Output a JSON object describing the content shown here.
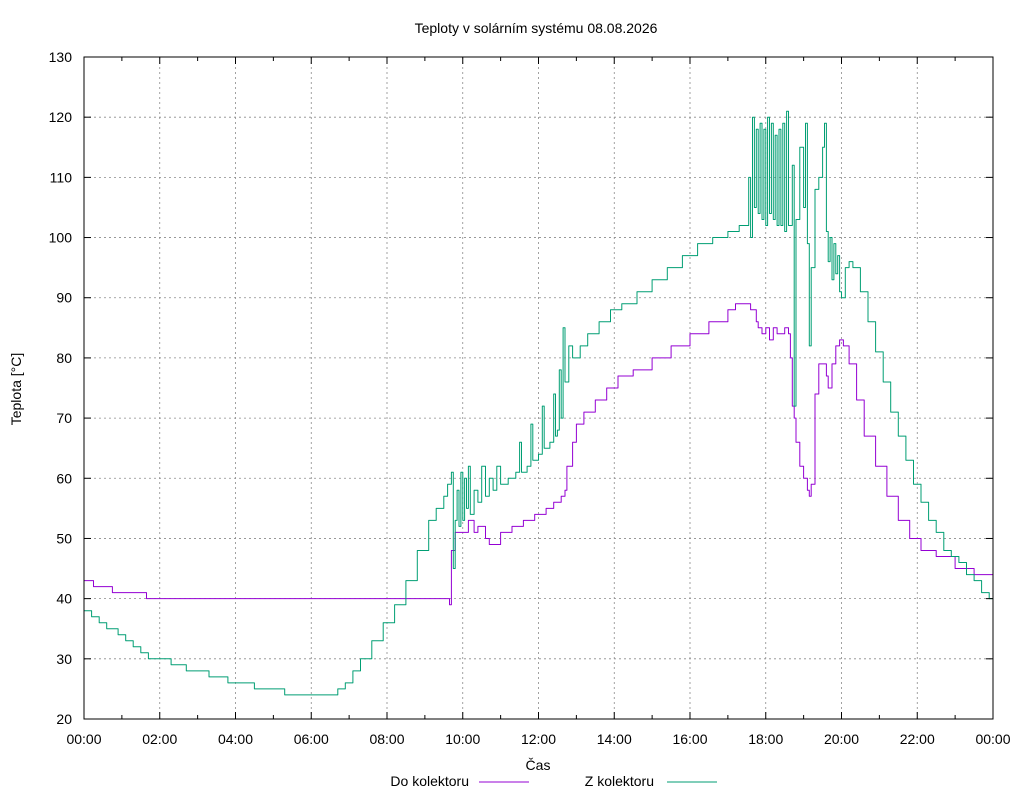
{
  "chart_data": {
    "type": "line",
    "title": "Teploty v solárním systému 08.08.2026",
    "xlabel": "Čas",
    "ylabel": "Teplota [°C]",
    "xlim": [
      0,
      24
    ],
    "ylim": [
      20,
      130
    ],
    "grid": true,
    "legend_position": "bottom-center",
    "x_ticks": [
      {
        "value": 0,
        "label": "00:00"
      },
      {
        "value": 2,
        "label": "02:00"
      },
      {
        "value": 4,
        "label": "04:00"
      },
      {
        "value": 6,
        "label": "06:00"
      },
      {
        "value": 8,
        "label": "08:00"
      },
      {
        "value": 10,
        "label": "10:00"
      },
      {
        "value": 12,
        "label": "12:00"
      },
      {
        "value": 14,
        "label": "14:00"
      },
      {
        "value": 16,
        "label": "16:00"
      },
      {
        "value": 18,
        "label": "18:00"
      },
      {
        "value": 20,
        "label": "20:00"
      },
      {
        "value": 22,
        "label": "22:00"
      },
      {
        "value": 24,
        "label": "00:00"
      }
    ],
    "y_ticks": [
      20,
      30,
      40,
      50,
      60,
      70,
      80,
      90,
      100,
      110,
      120,
      130
    ],
    "series": [
      {
        "name": "Do kolektoru",
        "color": "#9400d3",
        "points": [
          [
            0,
            43
          ],
          [
            0.2,
            43
          ],
          [
            0.25,
            42
          ],
          [
            0.7,
            42
          ],
          [
            0.75,
            41
          ],
          [
            1.6,
            41
          ],
          [
            1.65,
            40
          ],
          [
            9.6,
            40
          ],
          [
            9.65,
            39
          ],
          [
            9.7,
            48
          ],
          [
            9.8,
            51
          ],
          [
            10,
            51
          ],
          [
            10.15,
            53
          ],
          [
            10.3,
            51
          ],
          [
            10.4,
            52
          ],
          [
            10.6,
            50
          ],
          [
            10.7,
            49
          ],
          [
            10.9,
            49
          ],
          [
            11,
            51
          ],
          [
            11.3,
            52
          ],
          [
            11.6,
            53
          ],
          [
            11.9,
            54
          ],
          [
            12.2,
            55
          ],
          [
            12.4,
            56
          ],
          [
            12.6,
            57
          ],
          [
            12.7,
            58
          ],
          [
            12.75,
            62
          ],
          [
            12.9,
            66
          ],
          [
            13,
            69
          ],
          [
            13.2,
            71
          ],
          [
            13.5,
            73
          ],
          [
            13.8,
            75
          ],
          [
            14.1,
            77
          ],
          [
            14.5,
            78
          ],
          [
            15,
            80
          ],
          [
            15.5,
            82
          ],
          [
            16,
            84
          ],
          [
            16.5,
            86
          ],
          [
            17,
            88
          ],
          [
            17.2,
            89
          ],
          [
            17.4,
            89
          ],
          [
            17.6,
            88
          ],
          [
            17.75,
            86
          ],
          [
            17.8,
            85
          ],
          [
            17.9,
            84
          ],
          [
            18,
            85
          ],
          [
            18.1,
            83
          ],
          [
            18.2,
            85
          ],
          [
            18.3,
            84
          ],
          [
            18.4,
            84
          ],
          [
            18.5,
            85
          ],
          [
            18.6,
            84
          ],
          [
            18.65,
            80
          ],
          [
            18.7,
            72
          ],
          [
            18.75,
            70
          ],
          [
            18.8,
            66
          ],
          [
            18.9,
            62
          ],
          [
            19,
            60
          ],
          [
            19.1,
            58
          ],
          [
            19.15,
            57
          ],
          [
            19.2,
            59
          ],
          [
            19.3,
            74
          ],
          [
            19.4,
            79
          ],
          [
            19.5,
            79
          ],
          [
            19.6,
            77
          ],
          [
            19.65,
            75
          ],
          [
            19.7,
            75
          ],
          [
            19.75,
            79
          ],
          [
            19.85,
            82
          ],
          [
            19.95,
            83
          ],
          [
            20.05,
            82
          ],
          [
            20.2,
            79
          ],
          [
            20.4,
            73
          ],
          [
            20.6,
            67
          ],
          [
            20.9,
            62
          ],
          [
            21.2,
            57
          ],
          [
            21.5,
            53
          ],
          [
            21.8,
            50
          ],
          [
            22.1,
            48
          ],
          [
            22.5,
            47
          ],
          [
            23,
            45
          ],
          [
            23.5,
            44
          ],
          [
            24,
            42
          ]
        ]
      },
      {
        "name": "Z kolektoru",
        "color": "#009e73",
        "points": [
          [
            0,
            38
          ],
          [
            0.2,
            37
          ],
          [
            0.4,
            36
          ],
          [
            0.6,
            35
          ],
          [
            0.9,
            34
          ],
          [
            1.1,
            33
          ],
          [
            1.3,
            32
          ],
          [
            1.5,
            31
          ],
          [
            1.7,
            30
          ],
          [
            2.2,
            30
          ],
          [
            2.3,
            29
          ],
          [
            2.6,
            29
          ],
          [
            2.7,
            28
          ],
          [
            3.2,
            28
          ],
          [
            3.3,
            27
          ],
          [
            3.7,
            27
          ],
          [
            3.8,
            26
          ],
          [
            4.4,
            26
          ],
          [
            4.5,
            25
          ],
          [
            5.2,
            25
          ],
          [
            5.3,
            24
          ],
          [
            6.6,
            24
          ],
          [
            6.7,
            25
          ],
          [
            6.9,
            26
          ],
          [
            7.1,
            28
          ],
          [
            7.3,
            30
          ],
          [
            7.6,
            33
          ],
          [
            7.9,
            36
          ],
          [
            8.2,
            39
          ],
          [
            8.5,
            43
          ],
          [
            8.8,
            48
          ],
          [
            9.1,
            53
          ],
          [
            9.3,
            55
          ],
          [
            9.5,
            57
          ],
          [
            9.6,
            59
          ],
          [
            9.7,
            61
          ],
          [
            9.75,
            45
          ],
          [
            9.8,
            53
          ],
          [
            9.85,
            58
          ],
          [
            9.9,
            52
          ],
          [
            9.95,
            61
          ],
          [
            10,
            53
          ],
          [
            10.05,
            60
          ],
          [
            10.1,
            55
          ],
          [
            10.15,
            62
          ],
          [
            10.2,
            54
          ],
          [
            10.3,
            58
          ],
          [
            10.4,
            56
          ],
          [
            10.5,
            62
          ],
          [
            10.6,
            57
          ],
          [
            10.7,
            60
          ],
          [
            10.8,
            58
          ],
          [
            10.9,
            62
          ],
          [
            11,
            59
          ],
          [
            11.2,
            60
          ],
          [
            11.4,
            61
          ],
          [
            11.5,
            66
          ],
          [
            11.55,
            61
          ],
          [
            11.7,
            62
          ],
          [
            11.8,
            69
          ],
          [
            11.85,
            63
          ],
          [
            12,
            64
          ],
          [
            12.1,
            72
          ],
          [
            12.15,
            65
          ],
          [
            12.3,
            66
          ],
          [
            12.4,
            74
          ],
          [
            12.45,
            67
          ],
          [
            12.5,
            68
          ],
          [
            12.55,
            78
          ],
          [
            12.6,
            70
          ],
          [
            12.65,
            85
          ],
          [
            12.7,
            76
          ],
          [
            12.8,
            82
          ],
          [
            12.9,
            80
          ],
          [
            13.1,
            82
          ],
          [
            13.3,
            84
          ],
          [
            13.6,
            86
          ],
          [
            13.9,
            88
          ],
          [
            14.2,
            89
          ],
          [
            14.6,
            91
          ],
          [
            15,
            93
          ],
          [
            15.4,
            95
          ],
          [
            15.8,
            97
          ],
          [
            16.2,
            99
          ],
          [
            16.6,
            100
          ],
          [
            17,
            101
          ],
          [
            17.3,
            102
          ],
          [
            17.5,
            102
          ],
          [
            17.55,
            110
          ],
          [
            17.6,
            100
          ],
          [
            17.65,
            120
          ],
          [
            17.7,
            105
          ],
          [
            17.75,
            118
          ],
          [
            17.8,
            104
          ],
          [
            17.85,
            119
          ],
          [
            17.9,
            103
          ],
          [
            17.95,
            118
          ],
          [
            18,
            102
          ],
          [
            18.05,
            120
          ],
          [
            18.1,
            104
          ],
          [
            18.15,
            119
          ],
          [
            18.2,
            103
          ],
          [
            18.25,
            117
          ],
          [
            18.3,
            102
          ],
          [
            18.35,
            118
          ],
          [
            18.4,
            102
          ],
          [
            18.45,
            119
          ],
          [
            18.5,
            101
          ],
          [
            18.55,
            121
          ],
          [
            18.6,
            102
          ],
          [
            18.7,
            112
          ],
          [
            18.75,
            72
          ],
          [
            18.8,
            103
          ],
          [
            18.9,
            115
          ],
          [
            19,
            105
          ],
          [
            19.05,
            119
          ],
          [
            19.1,
            99
          ],
          [
            19.15,
            82
          ],
          [
            19.2,
            95
          ],
          [
            19.3,
            108
          ],
          [
            19.4,
            110
          ],
          [
            19.5,
            115
          ],
          [
            19.55,
            119
          ],
          [
            19.6,
            101
          ],
          [
            19.65,
            96
          ],
          [
            19.7,
            100
          ],
          [
            19.75,
            93
          ],
          [
            19.8,
            99
          ],
          [
            19.85,
            94
          ],
          [
            19.9,
            97
          ],
          [
            19.95,
            91
          ],
          [
            20,
            90
          ],
          [
            20.1,
            95
          ],
          [
            20.2,
            96
          ],
          [
            20.3,
            95
          ],
          [
            20.5,
            91
          ],
          [
            20.7,
            86
          ],
          [
            20.9,
            81
          ],
          [
            21.1,
            76
          ],
          [
            21.3,
            71
          ],
          [
            21.5,
            67
          ],
          [
            21.7,
            63
          ],
          [
            21.9,
            59
          ],
          [
            22.1,
            56
          ],
          [
            22.3,
            53
          ],
          [
            22.5,
            51
          ],
          [
            22.7,
            48
          ],
          [
            22.9,
            47
          ],
          [
            23.1,
            46
          ],
          [
            23.3,
            44
          ],
          [
            23.5,
            43
          ],
          [
            23.7,
            41
          ],
          [
            23.9,
            40
          ],
          [
            24,
            39
          ]
        ]
      }
    ]
  }
}
